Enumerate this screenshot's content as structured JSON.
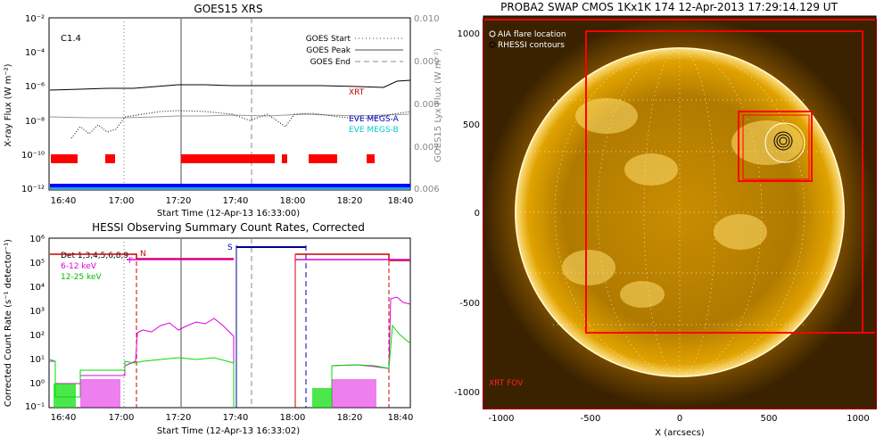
{
  "goes": {
    "title": "GOES15 XRS",
    "ylabel": "X-ray Flux (W m⁻²)",
    "y2label": "GOES15 Lyx Flux (W m⁻²)",
    "xlabel": "Start Time (12-Apr-13 16:33:00)",
    "flare_class": "C1.4",
    "y_ticks": [
      "10⁻²",
      "10⁻⁴",
      "10⁻⁶",
      "10⁻⁸",
      "10⁻¹⁰",
      "10⁻¹²"
    ],
    "y2_ticks": [
      "0.010",
      "0.009",
      "0.008",
      "0.007",
      "0.006"
    ],
    "x_ticks": [
      "16:40",
      "17:00",
      "17:20",
      "17:40",
      "18:00",
      "18:20",
      "18:40"
    ],
    "legend": [
      "GOES Start",
      "GOES Peak",
      "GOES End"
    ],
    "labels": {
      "xrt": "XRT",
      "megs_a": "EVE MEGS-A",
      "megs_b": "EVE MEGS-B"
    },
    "colors": {
      "xrt": "#cc0000",
      "megs_a": "#0000cc",
      "megs_b": "#00cccc",
      "bars": "#ff0000"
    }
  },
  "hessi": {
    "title": "HESSI Observing Summary Count Rates, Corrected",
    "ylabel": "Corrected Count Rate (s⁻¹ detector⁻¹)",
    "xlabel": "Start Time (12-Apr-13 16:33:02)",
    "y_ticks": [
      "10⁶",
      "10⁵",
      "10⁴",
      "10³",
      "10²",
      "10¹",
      "10⁰",
      "10⁻¹"
    ],
    "x_ticks": [
      "16:40",
      "17:00",
      "17:20",
      "17:40",
      "18:00",
      "18:20",
      "18:40"
    ],
    "legend": [
      "Det 1,3,4,5,6,8,9",
      "6-12 keV",
      "12-25 keV"
    ],
    "marks": {
      "n": "N",
      "f": "F",
      "s": "S"
    },
    "colors": {
      "det": "#cc0000",
      "low": "#dd00dd",
      "high": "#00dd00",
      "s": "#000099"
    }
  },
  "swap": {
    "title": "PROBA2 SWAP CMOS 1Kx1K 174 12-Apr-2013 17:29:14.129 UT",
    "xlabel": "X (arcsecs)",
    "x_ticks": [
      "-1000",
      "-500",
      "0",
      "500",
      "1000"
    ],
    "y_ticks": [
      "1000",
      "500",
      "0",
      "-500",
      "-1000"
    ],
    "legend": [
      "AIA flare location",
      "RHESSI contours"
    ],
    "fov_label": "XRT FOV"
  },
  "chart_data": [
    {
      "type": "line",
      "title": "GOES15 XRS",
      "xlabel": "Start Time (12-Apr-13 16:33:00)",
      "ylabel": "X-ray Flux (W m⁻²)",
      "y_scale": "log",
      "ylim": [
        1e-12,
        0.01
      ],
      "y2lim": [
        0.006,
        0.01
      ],
      "x": [
        "16:33",
        "16:40",
        "17:00",
        "17:20",
        "17:40",
        "18:00",
        "18:20",
        "18:40",
        "18:53"
      ],
      "series": [
        {
          "name": "XRT",
          "values": [
            1e-06,
            1.2e-06,
            1.4e-06,
            1.6e-06,
            1.5e-06,
            1.6e-06,
            1.5e-06,
            1.4e-06,
            2e-06
          ]
        },
        {
          "name": "EVE MEGS-A",
          "values": [
            1e-08,
            1e-08,
            1e-08,
            1.2e-08,
            1e-08,
            1e-08,
            1e-08,
            1.1e-08,
            1.2e-08
          ]
        }
      ],
      "events": {
        "GOES Start": "17:01",
        "GOES Peak": "17:22",
        "GOES End": "17:52"
      },
      "grid": false,
      "legend": "top-right"
    },
    {
      "type": "line",
      "title": "HESSI Observing Summary Count Rates, Corrected",
      "xlabel": "Start Time (12-Apr-13 16:33:02)",
      "ylabel": "Corrected Count Rate (s⁻¹ detector⁻¹)",
      "y_scale": "log",
      "ylim": [
        0.1,
        1000000.0
      ],
      "x": [
        "16:40",
        "17:00",
        "17:10",
        "17:20",
        "17:40",
        "18:20",
        "18:40",
        "18:45",
        "18:53"
      ],
      "series": [
        {
          "name": "6-12 keV",
          "values": [
            4,
            3,
            6,
            8,
            10,
            3,
            3,
            2000,
            1000
          ]
        },
        {
          "name": "12-25 keV",
          "values": [
            3,
            2,
            5,
            7,
            6,
            2,
            2,
            200,
            40
          ]
        }
      ],
      "legend": "top-left"
    },
    {
      "type": "heatmap",
      "title": "PROBA2 SWAP CMOS 1Kx1K 174 12-Apr-2013 17:29:14.129 UT",
      "xlabel": "X (arcsecs)",
      "xlim": [
        -1100,
        1100
      ],
      "ylim": [
        -1100,
        1100
      ],
      "annotations": [
        "AIA flare location",
        "RHESSI contours",
        "XRT FOV"
      ]
    }
  ]
}
